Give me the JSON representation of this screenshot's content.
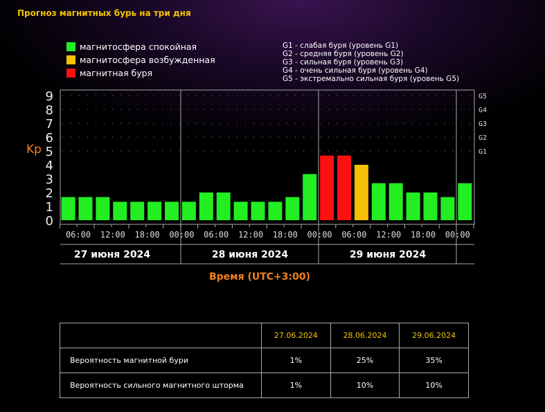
{
  "title": "Прогноз магнитных бурь на три дня",
  "legend": [
    {
      "label": "магнитосфера спокойная",
      "color": "#22ee22"
    },
    {
      "label": "магнитосфера возбужденная",
      "color": "#f5c000"
    },
    {
      "label": "магнитная буря",
      "color": "#ff1010"
    }
  ],
  "g_legend": [
    "G1 - слабая буря (уровень G1)",
    "G2 - средняя буря (уровень G2)",
    "G3 - сильная буря (уровень G3)",
    "G4 - очень сильная буря (уровень G4)",
    "G5 - экстремально сильная буря (уровень G5)"
  ],
  "chart_data": {
    "type": "bar",
    "ylabel": "Kp",
    "xlabel": "Время (UTC+3:00)",
    "ylim": [
      0,
      9
    ],
    "yticks": [
      "0",
      "1",
      "2",
      "3",
      "4",
      "5",
      "6",
      "7",
      "8",
      "9"
    ],
    "g_levels": [
      {
        "label": "G1",
        "kp": 5
      },
      {
        "label": "G2",
        "kp": 6
      },
      {
        "label": "G3",
        "kp": 7
      },
      {
        "label": "G4",
        "kp": 8
      },
      {
        "label": "G5",
        "kp": 9
      }
    ],
    "xtick_labels": [
      "06:00",
      "12:00",
      "18:00",
      "00:00",
      "06:00",
      "12:00",
      "18:00",
      "00:00",
      "06:00",
      "12:00",
      "18:00",
      "00:00"
    ],
    "days": [
      "27 июня 2024",
      "28 июня 2024",
      "29 июня 2024"
    ],
    "values": [
      1.67,
      1.67,
      1.67,
      1.33,
      1.33,
      1.33,
      1.33,
      1.33,
      2,
      2,
      1.33,
      1.33,
      1.33,
      1.67,
      3.33,
      4.67,
      4.67,
      4,
      2.67,
      2.67,
      2,
      2,
      1.67,
      2.67
    ],
    "colors": [
      "#22ee22",
      "#22ee22",
      "#22ee22",
      "#22ee22",
      "#22ee22",
      "#22ee22",
      "#22ee22",
      "#22ee22",
      "#22ee22",
      "#22ee22",
      "#22ee22",
      "#22ee22",
      "#22ee22",
      "#22ee22",
      "#22ee22",
      "#ff1010",
      "#ff1010",
      "#f5c000",
      "#22ee22",
      "#22ee22",
      "#22ee22",
      "#22ee22",
      "#22ee22",
      "#22ee22"
    ]
  },
  "table": {
    "headers": [
      "",
      "27.06.2024",
      "28.06.2024",
      "29.06.2024"
    ],
    "rows": [
      {
        "label": "Вероятность магнитной бури",
        "values": [
          "1%",
          "25%",
          "35%"
        ]
      },
      {
        "label": "Вероятность сильного магнитного шторма",
        "values": [
          "1%",
          "10%",
          "10%"
        ]
      }
    ]
  }
}
